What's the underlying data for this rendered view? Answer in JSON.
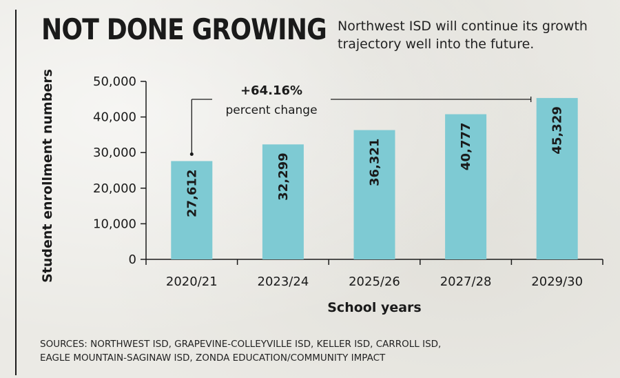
{
  "header": {
    "title": "NOT DONE GROWING",
    "subtitle": "Northwest ISD will continue its growth trajectory well into the future."
  },
  "footer": {
    "sources_line1": "SOURCES: NORTHWEST ISD, GRAPEVINE-COLLEYVILLE ISD, KELLER ISD, CARROLL ISD,",
    "sources_line2": "EAGLE MOUNTAIN-SAGINAW ISD, ZONDA EDUCATION/COMMUNITY IMPACT"
  },
  "chart_data": {
    "type": "bar",
    "categories": [
      "2020/21",
      "2023/24",
      "2025/26",
      "2027/28",
      "2029/30"
    ],
    "values": [
      27612,
      32299,
      36321,
      40777,
      45329
    ],
    "value_labels": [
      "27,612",
      "32,299",
      "36,321",
      "40,777",
      "45,329"
    ],
    "xlabel": "School years",
    "ylabel": "Student enrollment numbers",
    "ylim": [
      0,
      50000
    ],
    "yticks": [
      0,
      10000,
      20000,
      30000,
      40000,
      50000
    ],
    "ytick_labels": [
      "0",
      "10,000",
      "20,000",
      "30,000",
      "40,000",
      "50,000"
    ],
    "grid": false,
    "legend": "none",
    "bar_color": "#7ecad3",
    "annotation": {
      "value": "+64.16%",
      "text": "percent change",
      "from_category": "2020/21",
      "to_category": "2029/30"
    }
  }
}
